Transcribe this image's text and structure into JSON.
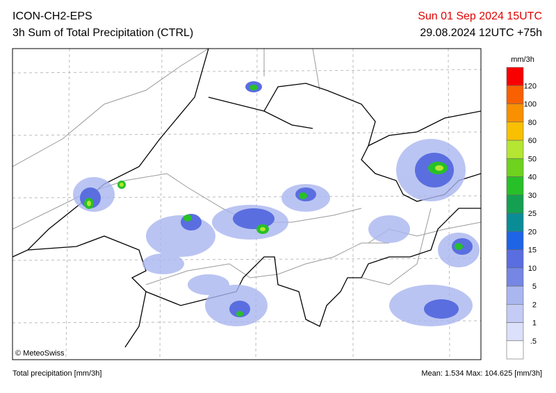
{
  "header": {
    "model": "ICON-CH2-EPS",
    "product": "3h Sum of Total Precipitation (CTRL)",
    "valid": "Sun 01 Sep 2024 15UTC",
    "run": "29.08.2024 12UTC +75h"
  },
  "colorbar": {
    "unit": "mm/3h",
    "labels": [
      ".5",
      "1",
      "2",
      "5",
      "10",
      "15",
      "20",
      "25",
      "30",
      "40",
      "50",
      "60",
      "80",
      "100",
      "120"
    ],
    "colors": [
      "#ffffff",
      "#dde0fa",
      "#c4ccf5",
      "#aab6f0",
      "#8f9eea",
      "#7586e4",
      "#5a6ee0",
      "#1e64e6",
      "#0a8c96",
      "#14a050",
      "#28c028",
      "#6ed21e",
      "#b4e632",
      "#f8f800",
      "#f8c000",
      "#f89000",
      "#f86000",
      "#f80000"
    ]
  },
  "map": {
    "copyright": "© MeteoSwiss"
  },
  "footer": {
    "left": "Total precipitation [mm/3h]",
    "right": "Mean:  1.534 Max: 104.625 [mm/3h]"
  }
}
